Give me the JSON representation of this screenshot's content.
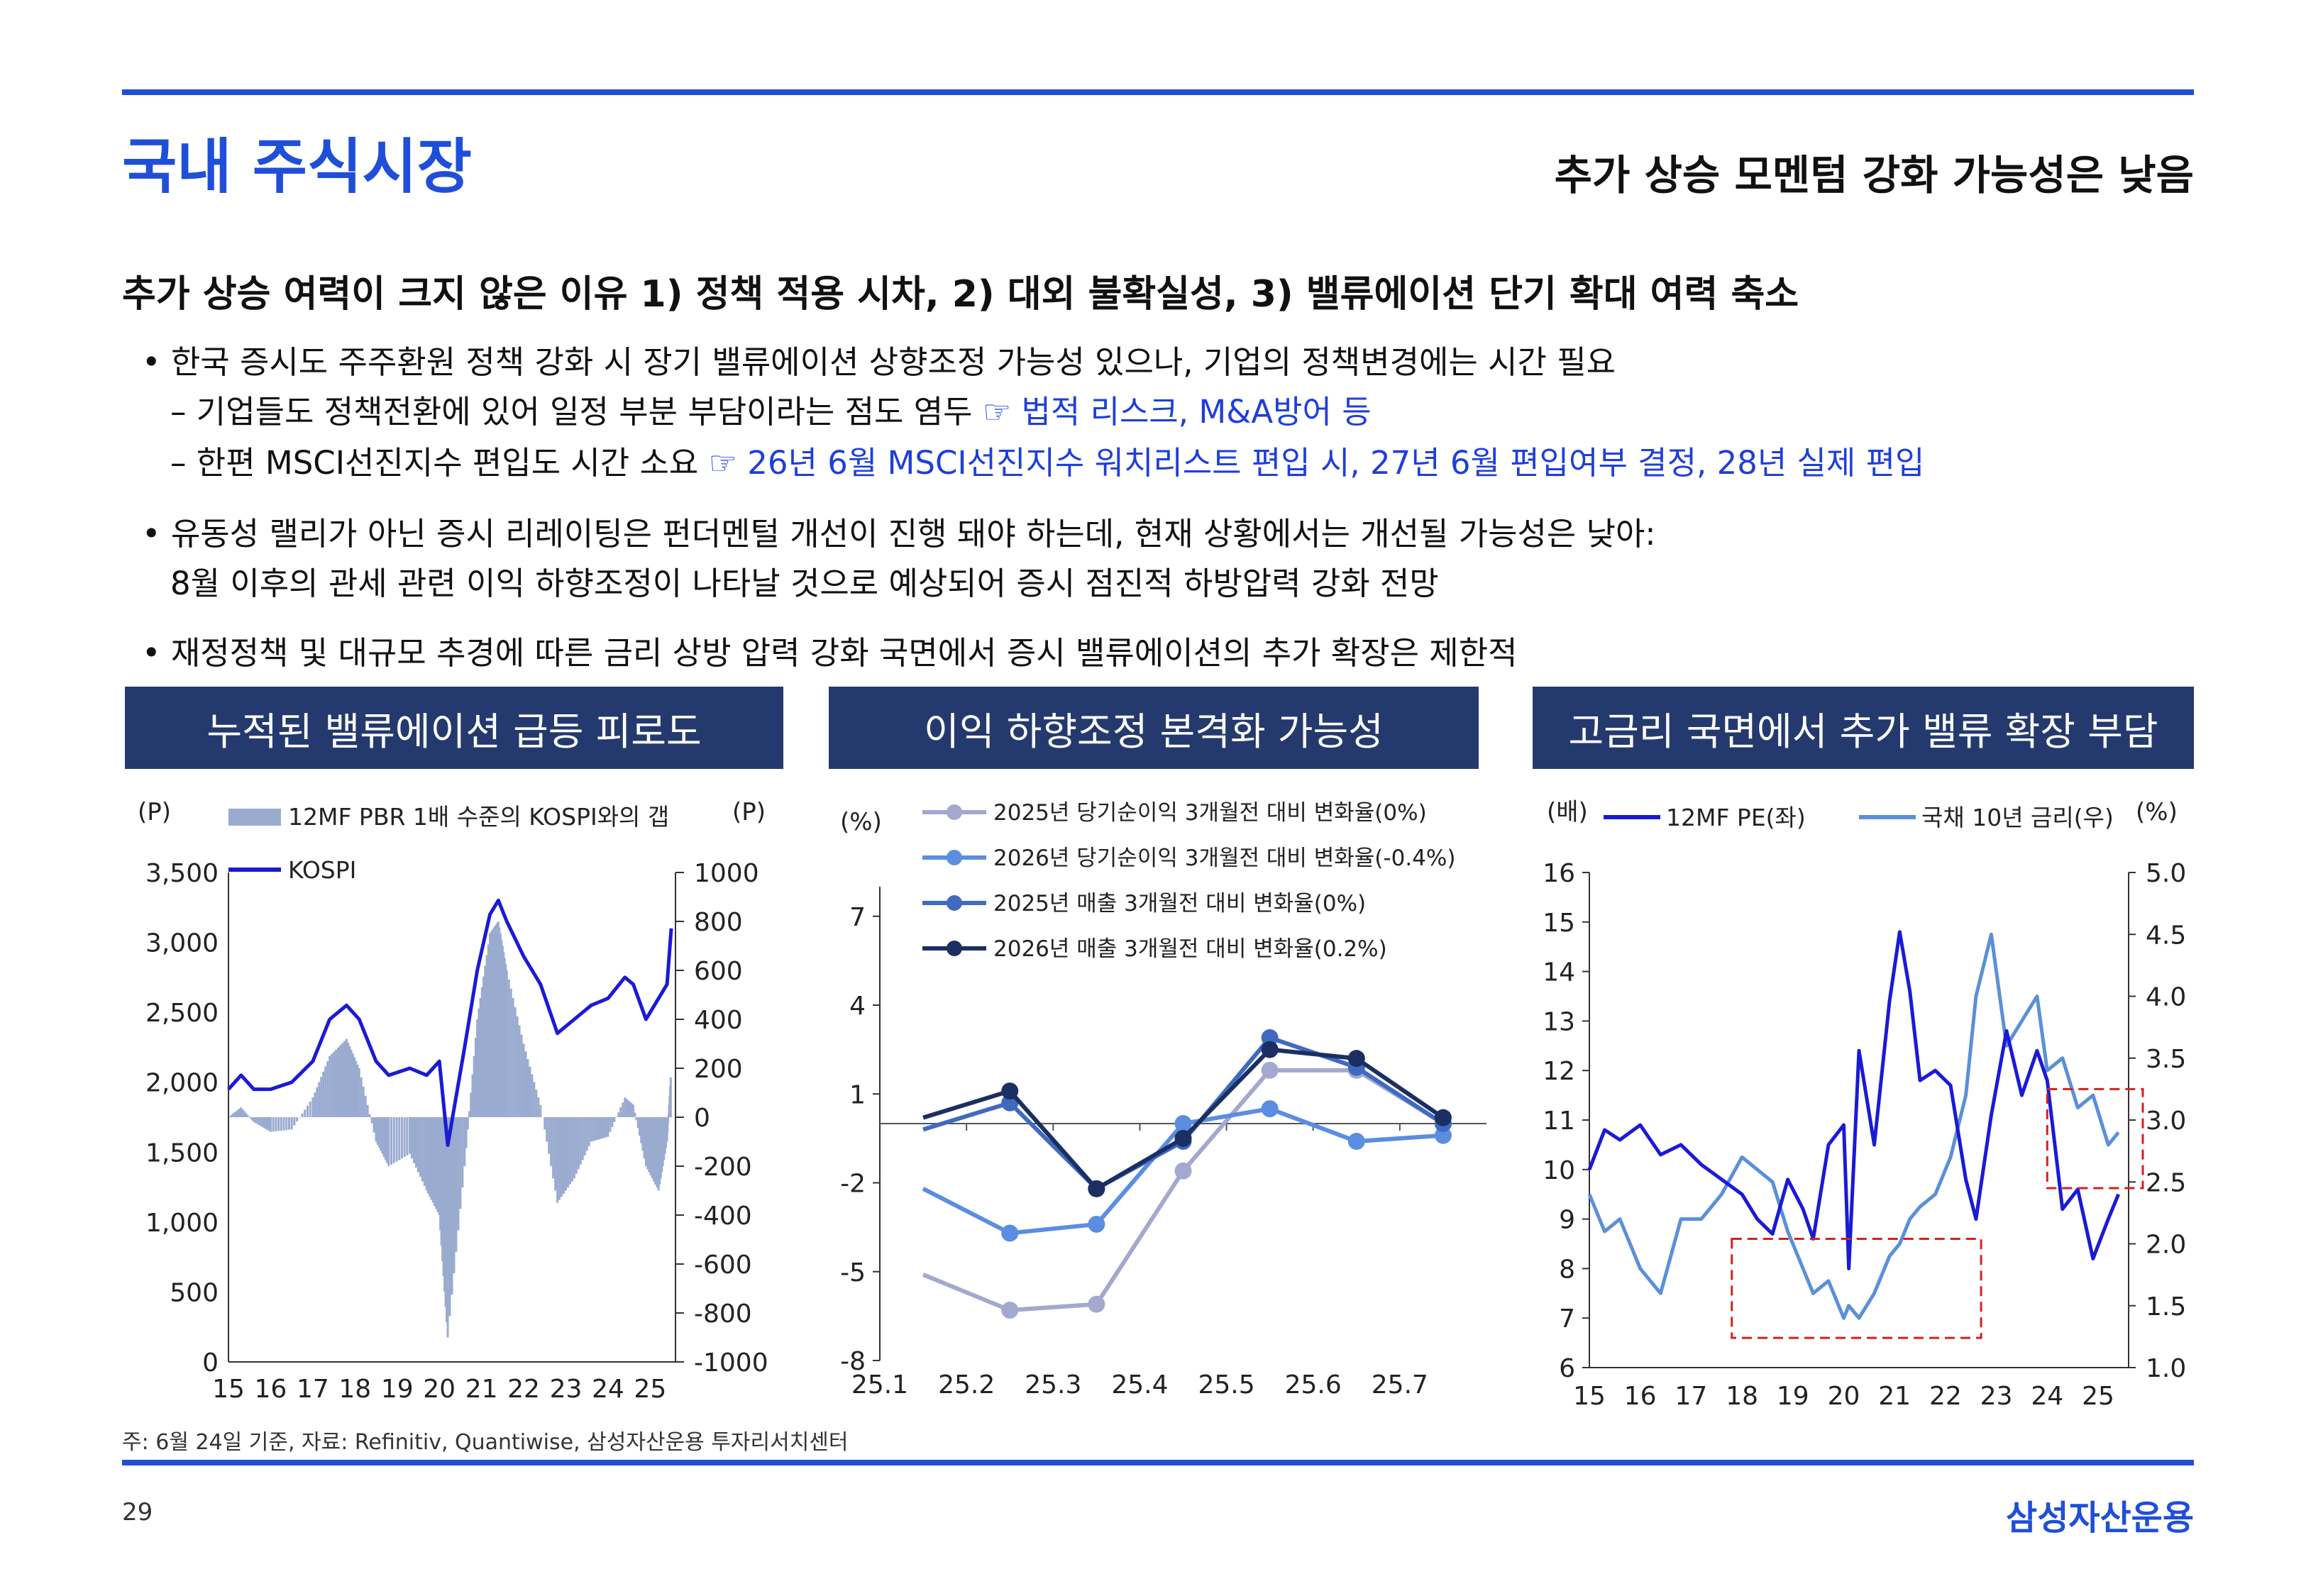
{
  "header": {
    "title": "국내 주식시장",
    "subtitle": "추가 상승 모멘텀 강화 가능성은 낮음"
  },
  "headline": "추가 상승 여력이 크지 않은 이유 1) 정책 적용 시차, 2) 대외 불확실성, 3) 밸류에이션 단기 확대 여력 축소",
  "bullets": {
    "b1": "• 한국 증시도 주주환원 정책 강화 시 장기 밸류에이션 상향조정 가능성 있으나, 기업의 정책변경에는 시간 필요",
    "b1_sub1_text": "– 기업들도 정책전환에 있어 일정 부분 부담이라는 점도 염두 ",
    "b1_sub1_hl": "☞ 법적 리스크, M&A방어 등",
    "b1_sub2_text": "– 한편 MSCI선진지수 편입도 시간 소요 ",
    "b1_sub2_hl": "☞ 26년 6월 MSCI선진지수 워치리스트 편입 시, 27년 6월 편입여부 결정, 28년 실제 편입",
    "b2_l1": "• 유동성 랠리가 아닌 증시 리레이팅은 펀더멘털 개선이 진행 돼야 하는데, 현재 상황에서는 개선될 가능성은 낮아:",
    "b2_l2": "8월 이후의 관세 관련 이익 하향조정이 나타날 것으로 예상되어 증시 점진적 하방압력 강화 전망",
    "b3": "• 재정정책 및 대규모 추경에 따른 금리 상방 압력 강화 국면에서 증시 밸류에이션의 추가 확장은 제한적"
  },
  "banners": {
    "left": "누적된 밸류에이션 급등 피로도",
    "mid": "이익 하향조정 본격화 가능성",
    "right": "고금리 국면에서 추가 밸류 확장 부담"
  },
  "colors": {
    "accent": "#1f4fd8",
    "banner": "#243a6e",
    "kospi": "#1a1ad6",
    "gap_bar": "#9aabd0",
    "s1": "#a3a8cf",
    "s2": "#5b8de0",
    "s3": "#3f6ac0",
    "s4": "#1b2f63",
    "pe": "#1a1ad6",
    "rate": "#5b8fd8",
    "box": "#d62020"
  },
  "chart_data": [
    {
      "type": "line",
      "id": "left",
      "title": "누적된 밸류에이션 급등 피로도",
      "ylabel_left": "(P)",
      "ylabel_right": "(P)",
      "ylim_left": [
        0,
        3500
      ],
      "ylim_right": [
        -1000,
        1000
      ],
      "yticks_left": [
        "3,500",
        "3,000",
        "2,500",
        "2,000",
        "1,500",
        "1,000",
        "500",
        "0"
      ],
      "yticks_right": [
        "1000",
        "800",
        "600",
        "400",
        "200",
        "0",
        "-200",
        "-400",
        "-600",
        "-800",
        "-1000"
      ],
      "xticks": [
        "15",
        "16",
        "17",
        "18",
        "19",
        "20",
        "21",
        "22",
        "23",
        "24",
        "25"
      ],
      "legend": [
        "12MF PBR 1배 수준의 KOSPI와의 갭",
        "KOSPI"
      ],
      "series": [
        {
          "name": "KOSPI",
          "axis": "left",
          "style": "line",
          "x": [
            15.0,
            15.3,
            15.6,
            16.0,
            16.5,
            17.0,
            17.4,
            17.8,
            18.1,
            18.5,
            18.8,
            19.3,
            19.7,
            20.0,
            20.2,
            20.6,
            20.9,
            21.2,
            21.4,
            21.6,
            22.0,
            22.4,
            22.8,
            23.2,
            23.6,
            24.0,
            24.4,
            24.6,
            24.9,
            25.2,
            25.4,
            25.5
          ],
          "values": [
            1950,
            2050,
            1950,
            1950,
            2000,
            2150,
            2450,
            2550,
            2450,
            2150,
            2050,
            2100,
            2050,
            2150,
            1550,
            2250,
            2800,
            3200,
            3300,
            3150,
            2900,
            2700,
            2350,
            2450,
            2550,
            2600,
            2750,
            2700,
            2450,
            2600,
            2700,
            3100
          ]
        },
        {
          "name": "12MF PBR 1배 수준의 KOSPI와의 갭",
          "axis": "right",
          "style": "bar",
          "x": [
            15.0,
            15.3,
            15.6,
            16.0,
            16.5,
            17.0,
            17.4,
            17.8,
            18.1,
            18.5,
            18.8,
            19.3,
            19.7,
            20.0,
            20.2,
            20.6,
            20.9,
            21.2,
            21.4,
            21.6,
            22.0,
            22.4,
            22.8,
            23.2,
            23.6,
            24.0,
            24.4,
            24.6,
            24.9,
            25.2,
            25.4,
            25.5
          ],
          "values": [
            0,
            40,
            -20,
            -60,
            -50,
            80,
            250,
            320,
            200,
            -100,
            -200,
            -150,
            -300,
            -400,
            -900,
            -200,
            400,
            750,
            800,
            600,
            300,
            50,
            -350,
            -250,
            -100,
            -80,
            80,
            50,
            -200,
            -300,
            -100,
            200
          ]
        }
      ]
    },
    {
      "type": "line",
      "id": "mid",
      "title": "이익 하향조정 본격화 가능성",
      "ylabel": "(%)",
      "ylim": [
        -8,
        8
      ],
      "yticks": [
        "7",
        "4",
        "1",
        "-2",
        "-5",
        "-8"
      ],
      "categories": [
        "25.1",
        "25.2",
        "25.3",
        "25.4",
        "25.5",
        "25.6",
        "25.7"
      ],
      "x": [
        0.5,
        1.5,
        2.5,
        3.5,
        4.5,
        5.5,
        6.5
      ],
      "series": [
        {
          "name": "2025년 당기순이익 3개월전 대비 변화율(0%)",
          "values": [
            -5.1,
            -6.3,
            -6.1,
            -1.6,
            1.8,
            1.8,
            0
          ]
        },
        {
          "name": "2026년 당기순이익 3개월전 대비 변화율(-0.4%)",
          "values": [
            -2.2,
            -3.7,
            -3.4,
            0,
            0.5,
            -0.6,
            -0.4
          ]
        },
        {
          "name": "2025년 매출 3개월전 대비 변화율(0%)",
          "values": [
            -0.2,
            0.7,
            -2.2,
            -0.6,
            2.9,
            1.9,
            0
          ]
        },
        {
          "name": "2026년 매출 3개월전 대비 변화율(0.2%)",
          "values": [
            0.2,
            1.1,
            -2.2,
            -0.5,
            2.5,
            2.2,
            0.2
          ]
        }
      ]
    },
    {
      "type": "line",
      "id": "right",
      "title": "고금리 국면에서 추가 밸류 확장 부담",
      "ylabel_left": "(배)",
      "ylabel_right": "(%)",
      "ylim_left": [
        6,
        16
      ],
      "ylim_right": [
        1.0,
        5.0
      ],
      "yticks_left": [
        "16",
        "15",
        "14",
        "13",
        "12",
        "11",
        "10",
        "9",
        "8",
        "7",
        "6"
      ],
      "yticks_right": [
        "5.0",
        "4.5",
        "4.0",
        "3.5",
        "3.0",
        "2.5",
        "2.0",
        "1.5",
        "1.0"
      ],
      "xticks": [
        "15",
        "16",
        "17",
        "18",
        "19",
        "20",
        "21",
        "22",
        "23",
        "24",
        "25"
      ],
      "series": [
        {
          "name": "12MF PE(좌)",
          "axis": "left",
          "x": [
            15.0,
            15.3,
            15.6,
            16.0,
            16.4,
            16.8,
            17.2,
            17.6,
            18.0,
            18.3,
            18.6,
            18.9,
            19.2,
            19.4,
            19.7,
            20.0,
            20.1,
            20.3,
            20.6,
            20.9,
            21.1,
            21.3,
            21.5,
            21.8,
            22.1,
            22.4,
            22.6,
            22.9,
            23.2,
            23.5,
            23.8,
            24.0,
            24.3,
            24.6,
            24.9,
            25.2,
            25.4
          ],
          "values": [
            10.0,
            10.8,
            10.6,
            10.9,
            10.3,
            10.5,
            10.1,
            9.8,
            9.5,
            9.0,
            8.7,
            9.8,
            9.2,
            8.6,
            10.5,
            10.9,
            8.0,
            12.4,
            10.5,
            13.4,
            14.8,
            13.6,
            11.8,
            12.0,
            11.7,
            9.8,
            9.0,
            11.1,
            12.8,
            11.5,
            12.4,
            11.8,
            9.2,
            9.6,
            8.2,
            9.0,
            9.5
          ]
        },
        {
          "name": "국채 10년 금리(우)",
          "axis": "right",
          "x": [
            15.0,
            15.3,
            15.6,
            16.0,
            16.4,
            16.8,
            17.2,
            17.6,
            18.0,
            18.3,
            18.6,
            18.9,
            19.2,
            19.4,
            19.7,
            20.0,
            20.1,
            20.3,
            20.6,
            20.9,
            21.1,
            21.3,
            21.5,
            21.8,
            22.1,
            22.4,
            22.6,
            22.9,
            23.2,
            23.5,
            23.8,
            24.0,
            24.3,
            24.6,
            24.9,
            25.2,
            25.4
          ],
          "values": [
            2.4,
            2.1,
            2.2,
            1.8,
            1.6,
            2.2,
            2.2,
            2.4,
            2.7,
            2.6,
            2.5,
            2.1,
            1.8,
            1.6,
            1.7,
            1.4,
            1.5,
            1.4,
            1.6,
            1.9,
            2.0,
            2.2,
            2.3,
            2.4,
            2.7,
            3.2,
            4.0,
            4.5,
            3.6,
            3.8,
            4.0,
            3.4,
            3.5,
            3.1,
            3.2,
            2.8,
            2.9
          ]
        }
      ],
      "annotations": [
        "red dashed box 2018–2022 low-rate period",
        "red dashed box 2024–2025 recent period"
      ]
    }
  ],
  "footer": {
    "note": "주: 6월 24일 기준, 자료: Refinitiv, Quantiwise, 삼성자산운용 투자리서치센터",
    "page": "29",
    "brand": "삼성자산운용"
  }
}
